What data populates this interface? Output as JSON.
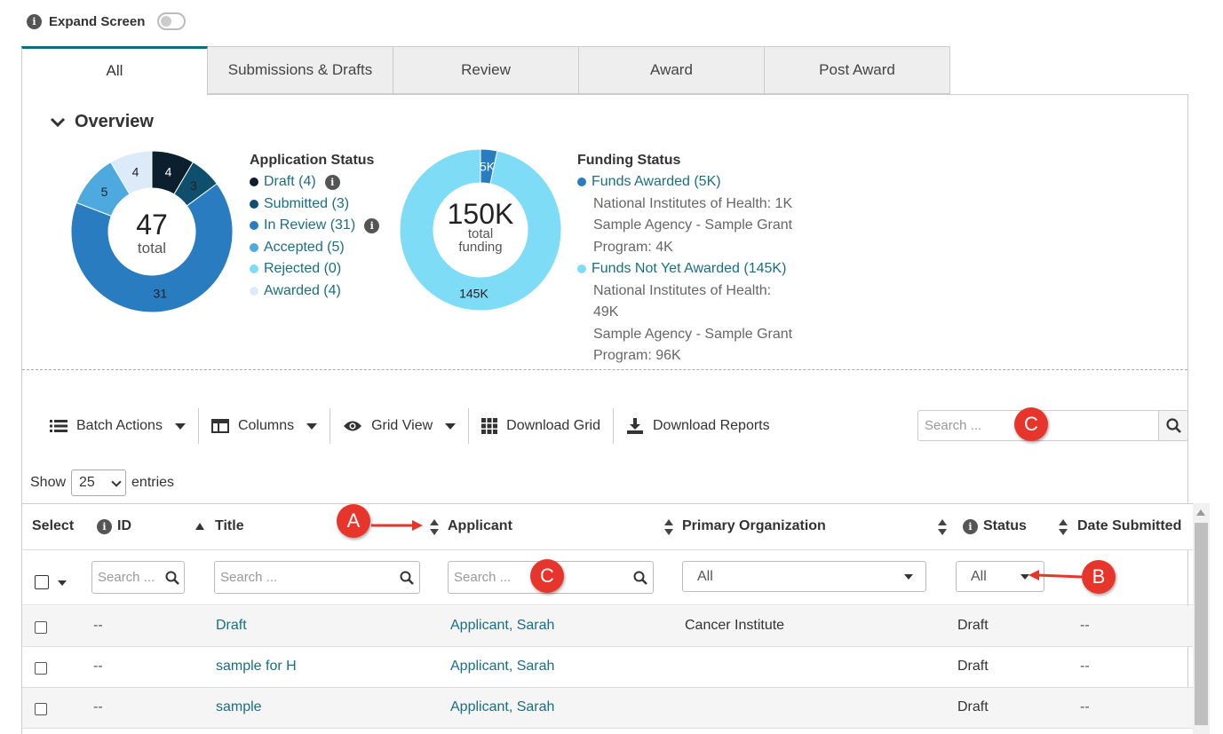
{
  "top": {
    "expand_label": "Expand Screen"
  },
  "tabs": [
    {
      "label": "All",
      "active": true
    },
    {
      "label": "Submissions & Drafts"
    },
    {
      "label": "Review"
    },
    {
      "label": "Award"
    },
    {
      "label": "Post Award"
    }
  ],
  "overview": {
    "title": "Overview",
    "app_chart": {
      "center_value": "47",
      "center_label": "total",
      "segments": [
        {
          "label": "4",
          "value": 4,
          "color": "#0b1f2e"
        },
        {
          "label": "3",
          "value": 3,
          "color": "#0e4f6e"
        },
        {
          "label": "31",
          "value": 31,
          "color": "#2a7cc0"
        },
        {
          "label": "5",
          "value": 5,
          "color": "#4ea9de"
        },
        {
          "label": "4",
          "value": 4,
          "color": "#dceafa"
        }
      ]
    },
    "app_legend": {
      "title": "Application Status",
      "items": [
        {
          "label": "Draft (4)",
          "color": "#0b1f2e",
          "info": true
        },
        {
          "label": "Submitted (3)",
          "color": "#0e4f6e"
        },
        {
          "label": "In Review (31)",
          "color": "#2a7cc0",
          "info": true
        },
        {
          "label": "Accepted (5)",
          "color": "#4ea9de"
        },
        {
          "label": "Rejected (0)",
          "color": "#7edcf6"
        },
        {
          "label": "Awarded (4)",
          "color": "#dceafa"
        }
      ]
    },
    "fund_chart": {
      "center_value": "150K",
      "center_label_1": "total",
      "center_label_2": "funding",
      "segments": [
        {
          "label": "5K",
          "value": 5,
          "color": "#2a7cc0"
        },
        {
          "label": "145K",
          "value": 145,
          "color": "#7edcf6"
        }
      ]
    },
    "fund_legend": {
      "title": "Funding Status",
      "awarded": "Funds Awarded (5K)",
      "awarded_color": "#2a7cc0",
      "awarded_lines": [
        "National Institutes of Health: 1K",
        "Sample Agency - Sample Grant",
        "Program: 4K"
      ],
      "not_awarded": "Funds Not Yet Awarded (145K)",
      "not_awarded_color": "#7edcf6",
      "not_awarded_lines": [
        "National Institutes of Health:",
        "49K",
        "Sample Agency - Sample Grant",
        "Program: 96K"
      ]
    }
  },
  "toolbar": {
    "batch": "Batch Actions",
    "columns": "Columns",
    "grid_view": "Grid View",
    "download_grid": "Download Grid",
    "download_reports": "Download Reports",
    "search_placeholder": "Search ..."
  },
  "entries": {
    "show": "Show",
    "value": "25",
    "suffix": "entries"
  },
  "table": {
    "headers": {
      "select": "Select",
      "id": "ID",
      "title": "Title",
      "applicant": "Applicant",
      "org": "Primary Organization",
      "status": "Status",
      "date": "Date Submitted"
    },
    "filters": {
      "id": "Search ...",
      "title": "Search ...",
      "applicant": "Search ...",
      "org": "All",
      "status": "All"
    },
    "rows": [
      {
        "id": "--",
        "title": "Draft",
        "applicant": "Applicant, Sarah",
        "org": "Cancer Institute",
        "status": "Draft",
        "date": "--"
      },
      {
        "id": "--",
        "title": "sample for H",
        "applicant": "Applicant, Sarah",
        "org": "",
        "status": "Draft",
        "date": "--"
      },
      {
        "id": "--",
        "title": "sample",
        "applicant": "Applicant, Sarah",
        "org": "",
        "status": "Draft",
        "date": "--"
      }
    ]
  },
  "callouts": {
    "a": "A",
    "b": "B",
    "c": "C"
  }
}
